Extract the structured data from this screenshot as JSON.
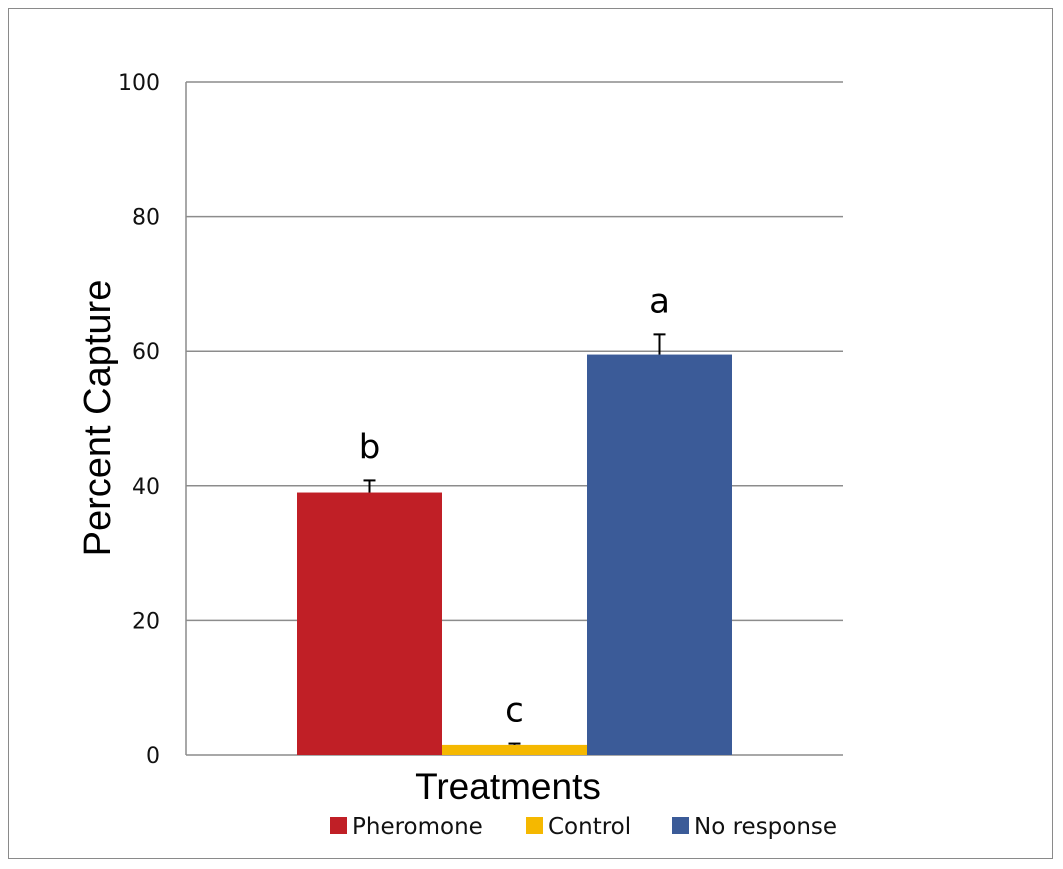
{
  "chart_data": {
    "type": "bar",
    "xlabel": "Treatments",
    "ylabel": "Percent Capture",
    "ylim": [
      0,
      100
    ],
    "yticks": [
      0,
      20,
      40,
      60,
      80,
      100
    ],
    "grid": true,
    "legend_position": "bottom",
    "bars": [
      {
        "name": "Pheromone",
        "value": 39,
        "error": 1.8,
        "letter": "b",
        "color": "#c01f26"
      },
      {
        "name": "Control",
        "value": 1.5,
        "error": 0.2,
        "letter": "c",
        "color": "#f5b800"
      },
      {
        "name": "No response",
        "value": 59.5,
        "error": 3,
        "letter": "a",
        "color": "#3b5b98"
      }
    ]
  }
}
